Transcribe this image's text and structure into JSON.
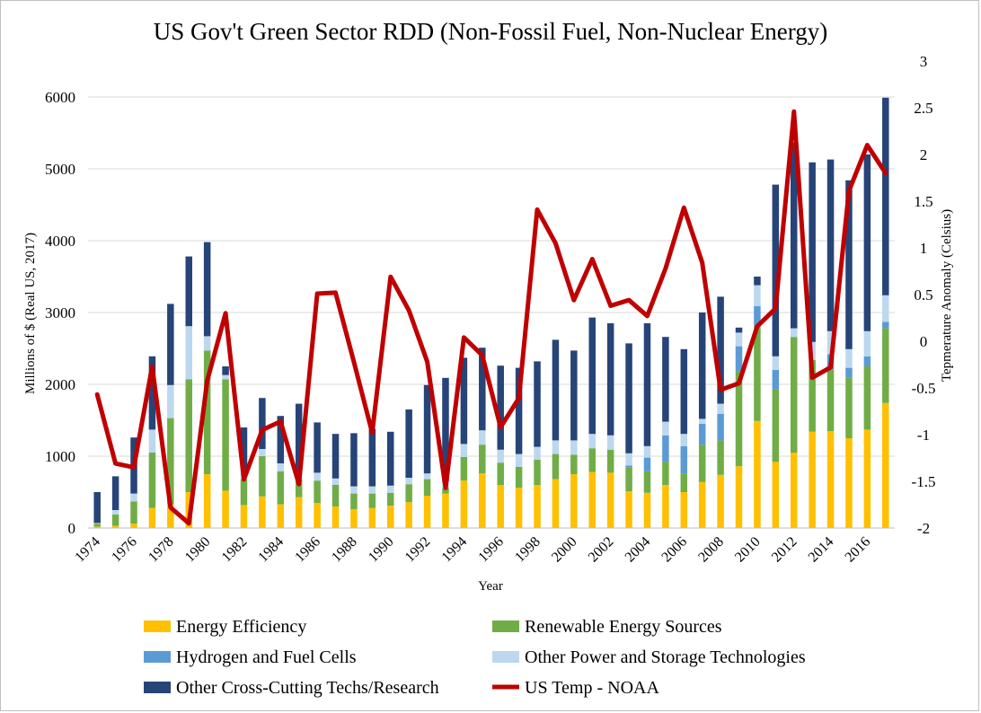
{
  "chart_data": {
    "type": "bar",
    "subtype": "stacked-bar-with-line",
    "title": "US Gov't Green Sector RDD (Non-Fossil Fuel, Non-Nuclear Energy)",
    "xlabel": "Year",
    "ylabel": "Millions of $ (Real US, 2017)",
    "y2label": "Tepmerature Anomaly (Celsius)",
    "ylim": [
      0,
      6000
    ],
    "y2lim": [
      -2,
      3
    ],
    "yticks": [
      0,
      1000,
      2000,
      3000,
      4000,
      5000,
      6000
    ],
    "y2ticks": [
      -2,
      -1.5,
      -1,
      -0.5,
      0,
      0.5,
      1,
      1.5,
      2,
      2.5,
      3
    ],
    "y2ticklabels": [
      "-2",
      "-1.5",
      "-1",
      "-0.5",
      "0",
      "0.5",
      "1",
      "1.5",
      "2",
      "2.5",
      "3"
    ],
    "xticklabels": [
      "1974",
      "1976",
      "1978",
      "1980",
      "1982",
      "1984",
      "1986",
      "1988",
      "1990",
      "1992",
      "1994",
      "1996",
      "1998",
      "2000",
      "2002",
      "2004",
      "2006",
      "2008",
      "2010",
      "2012",
      "2014",
      "2016"
    ],
    "grid": "horizontal",
    "legend_position": "bottom",
    "categories": [
      1974,
      1975,
      1976,
      1977,
      1978,
      1979,
      1980,
      1981,
      1982,
      1983,
      1984,
      1985,
      1986,
      1987,
      1988,
      1989,
      1990,
      1991,
      1992,
      1993,
      1994,
      1995,
      1996,
      1997,
      1998,
      1999,
      2000,
      2001,
      2002,
      2003,
      2004,
      2005,
      2006,
      2007,
      2008,
      2009,
      2010,
      2011,
      2012,
      2013,
      2014,
      2015,
      2016,
      2017
    ],
    "series": [
      {
        "name": "Energy Efficiency",
        "color": "#ffc000",
        "values": [
          20,
          30,
          60,
          280,
          330,
          500,
          750,
          520,
          320,
          440,
          330,
          430,
          350,
          300,
          260,
          280,
          310,
          360,
          450,
          480,
          660,
          760,
          600,
          560,
          600,
          680,
          750,
          780,
          770,
          510,
          490,
          600,
          500,
          640,
          740,
          860,
          1490,
          920,
          1050,
          1340,
          1350,
          1250,
          1370,
          1740
        ]
      },
      {
        "name": "Renewable Energy Sources",
        "color": "#70ad47",
        "values": [
          40,
          160,
          310,
          770,
          1200,
          1570,
          1720,
          1550,
          360,
          560,
          460,
          250,
          310,
          300,
          220,
          200,
          180,
          250,
          230,
          80,
          330,
          400,
          310,
          290,
          350,
          350,
          270,
          330,
          320,
          330,
          300,
          320,
          260,
          520,
          480,
          1320,
          1330,
          1010,
          1610,
          1000,
          860,
          840,
          880,
          1040
        ]
      },
      {
        "name": "Hydrogen and Fuel Cells",
        "color": "#5b9bd5",
        "values": [
          0,
          0,
          0,
          0,
          0,
          0,
          0,
          0,
          0,
          0,
          0,
          0,
          0,
          0,
          0,
          0,
          0,
          0,
          0,
          0,
          0,
          0,
          0,
          0,
          0,
          0,
          0,
          0,
          0,
          30,
          190,
          370,
          380,
          290,
          370,
          350,
          270,
          270,
          0,
          0,
          210,
          140,
          140,
          90
        ]
      },
      {
        "name": "Other Power and Storage Technologies",
        "color": "#bdd7ee",
        "values": [
          10,
          60,
          110,
          320,
          460,
          740,
          200,
          60,
          140,
          100,
          110,
          90,
          110,
          90,
          100,
          100,
          100,
          90,
          80,
          90,
          180,
          200,
          180,
          180,
          180,
          190,
          200,
          200,
          200,
          170,
          160,
          190,
          170,
          70,
          140,
          190,
          290,
          190,
          120,
          250,
          320,
          260,
          350,
          370
        ]
      },
      {
        "name": "Other Cross-Cutting Techs/Research",
        "color": "#264478",
        "values": [
          430,
          470,
          780,
          1020,
          1130,
          970,
          1310,
          120,
          580,
          710,
          660,
          960,
          700,
          620,
          740,
          800,
          750,
          950,
          1230,
          1440,
          1200,
          1150,
          1170,
          1200,
          1190,
          1400,
          1250,
          1620,
          1560,
          1530,
          1710,
          1180,
          1180,
          1480,
          1490,
          70,
          120,
          2390,
          2590,
          2500,
          2390,
          2350,
          2460,
          2750
        ]
      }
    ],
    "line_series": {
      "name": "US Temp - NOAA",
      "color": "#c00000",
      "axis": "right",
      "values": [
        -0.57,
        -1.31,
        -1.35,
        -0.27,
        -1.78,
        -1.95,
        -0.42,
        0.3,
        -1.48,
        -0.95,
        -0.86,
        -1.53,
        0.51,
        0.52,
        -0.22,
        -0.98,
        0.69,
        0.33,
        -0.22,
        -1.57,
        0.04,
        -0.15,
        -0.92,
        -0.61,
        1.41,
        1.05,
        0.44,
        0.88,
        0.38,
        0.44,
        0.27,
        0.78,
        1.43,
        0.84,
        -0.52,
        -0.45,
        0.16,
        0.35,
        2.46,
        -0.39,
        -0.28,
        1.61,
        2.1,
        1.8
      ]
    }
  }
}
